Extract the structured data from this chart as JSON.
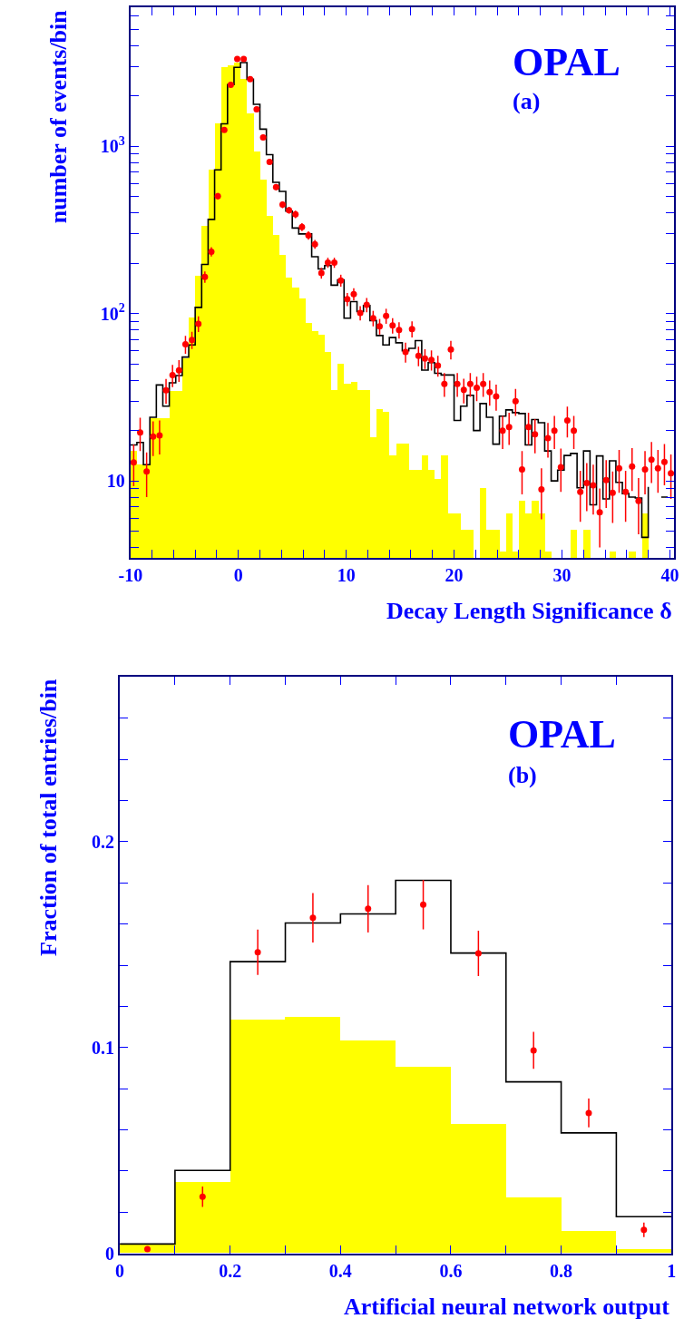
{
  "chart_data": [
    {
      "type": "histogram",
      "xlabel": "Decay Length Significance δ",
      "ylabel": "number of events/bin",
      "annotations": [
        "OPAL",
        "(a)"
      ],
      "log": true,
      "bins": [
        -10,
        -9.4,
        -8.8,
        -8.2,
        -7.6,
        -7,
        -6.4,
        -5.8,
        -5.2,
        -4.6,
        -4,
        -3.4,
        -2.8,
        -2.2,
        -1.6,
        -1,
        -0.4,
        0.2,
        0.8,
        1.4,
        2,
        2.6,
        3.2,
        3.8,
        4.4,
        5,
        5.6,
        6.2,
        6.8,
        7.4,
        8,
        8.6,
        9.2,
        9.8,
        10.4,
        11,
        11.6,
        12.2,
        12.8,
        13.4,
        14,
        14.6,
        15.2,
        15.8,
        16.4,
        17,
        17.6,
        18.2,
        18.8,
        19.4,
        20,
        20.6,
        21.2,
        21.8,
        22.4,
        23,
        23.6,
        24.2,
        24.8,
        25.4,
        26,
        26.6,
        27.2,
        27.8,
        28.4,
        29,
        29.6,
        30.2,
        30.8,
        31.4,
        32,
        32.6,
        33.2,
        33.8,
        34.4,
        35,
        35.6,
        36.2,
        36.8,
        37.4,
        38,
        38.6,
        39.2,
        39.8,
        40.4
      ],
      "xlim": [
        -10,
        40.4
      ],
      "ylim": [
        3.45,
        6800
      ],
      "xticks": [
        -10,
        {
          "value": -8,
          "label": null
        },
        {
          "value": -6,
          "label": null
        },
        {
          "value": -4,
          "label": null
        },
        {
          "value": -2,
          "label": null
        },
        0,
        {
          "value": 2,
          "label": null
        },
        {
          "value": 4,
          "label": null
        },
        {
          "value": 6,
          "label": null
        },
        {
          "value": 8,
          "label": null
        },
        10,
        {
          "value": 12,
          "label": null
        },
        {
          "value": 14,
          "label": null
        },
        {
          "value": 16,
          "label": null
        },
        {
          "value": 18,
          "label": null
        },
        20,
        {
          "value": 22,
          "label": null
        },
        {
          "value": 24,
          "label": null
        },
        {
          "value": 26,
          "label": null
        },
        {
          "value": 28,
          "label": null
        },
        30,
        {
          "value": 32,
          "label": null
        },
        {
          "value": 34,
          "label": null
        },
        {
          "value": 36,
          "label": null
        },
        {
          "value": 38,
          "label": null
        },
        40
      ],
      "yticks": [
        {
          "value": 4,
          "label": null
        },
        {
          "value": 5,
          "label": null
        },
        {
          "value": 6,
          "label": null
        },
        {
          "value": 7,
          "label": null
        },
        {
          "value": 8,
          "label": null
        },
        {
          "value": 9,
          "label": null
        },
        10,
        {
          "value": 20,
          "label": null
        },
        {
          "value": 30,
          "label": null
        },
        {
          "value": 40,
          "label": null
        },
        {
          "value": 50,
          "label": null
        },
        {
          "value": 60,
          "label": null
        },
        {
          "value": 70,
          "label": null
        },
        {
          "value": 80,
          "label": null
        },
        {
          "value": 90,
          "label": null
        },
        {
          "value": 100,
          "label": "10$^{2}$"
        },
        {
          "value": 200,
          "label": null
        },
        {
          "value": 300,
          "label": null
        },
        {
          "value": 400,
          "label": null
        },
        {
          "value": 500,
          "label": null
        },
        {
          "value": 600,
          "label": null
        },
        {
          "value": 700,
          "label": null
        },
        {
          "value": 800,
          "label": null
        },
        {
          "value": 900,
          "label": null
        },
        {
          "value": 1000,
          "label": "10$^{3}$"
        },
        {
          "value": 2000,
          "label": null
        },
        {
          "value": 3000,
          "label": null
        },
        {
          "value": 4000,
          "label": null
        },
        {
          "value": 5000,
          "label": null
        },
        {
          "value": 6000,
          "label": null
        }
      ],
      "series": [
        {
          "type": "histogram",
          "color": "#ffff00",
          "values": [
            15.2,
            12.5,
            12.5,
            23.8,
            23.8,
            23.8,
            34.5,
            34.5,
            54,
            95,
            168,
            336,
            724,
            1380,
            3000,
            3076,
            3170,
            2523,
            1585,
            929,
            631,
            385,
            297,
            226,
            164,
            143,
            124,
            88,
            79,
            75,
            59,
            35,
            50,
            38,
            39,
            35,
            35,
            18.3,
            27,
            26,
            14.3,
            16.7,
            16.7,
            11.7,
            11.7,
            14.3,
            11.7,
            10.3,
            14.3,
            6.4,
            6.4,
            5.1,
            5.1,
            null,
            9.1,
            5.1,
            5.1,
            3.8,
            6.4,
            3.8,
            7.6,
            6.4,
            7.6,
            6.4,
            3.8,
            null,
            null,
            null,
            5.1,
            null,
            5.1,
            null,
            null,
            null,
            3.8,
            null,
            null,
            3.8,
            null,
            6.4,
            null,
            null,
            null,
            null
          ]
        },
        {
          "type": "step",
          "color": "#000000",
          "x": [
            -10,
            -9.4,
            -8.8,
            -8.2,
            -7.6,
            -7,
            -6.4,
            -5.8,
            -5.2,
            -4.6,
            -4,
            -3.4,
            -2.8,
            -2.2,
            -1.6,
            -1,
            -0.4,
            0.2,
            0.8,
            1.4,
            2,
            2.6,
            3.2,
            3.8,
            4.4,
            5,
            5.6,
            6.2,
            6.8,
            7.4,
            8,
            8.6,
            9.2,
            9.8,
            10.4,
            11,
            11.6,
            12.2,
            12.8,
            13.4,
            14,
            14.6,
            15.2,
            15.8,
            16.4,
            17,
            17.6,
            18.2,
            18.8,
            19.4,
            20,
            20.6,
            21.2,
            21.8,
            22.4,
            23,
            23.6,
            24.2,
            24.8,
            25.4,
            26,
            26.6,
            27.2,
            27.8,
            28.4,
            29,
            29.6,
            30.2,
            30.8,
            31.4,
            32,
            32.6,
            33.2,
            33.8,
            34.4,
            35,
            35.6,
            36.2,
            36.8,
            37.4,
            38,
            38.6,
            39.2,
            39.8
          ],
          "values": [
            16.4,
            17,
            12.5,
            24,
            37.5,
            28,
            38.6,
            42.7,
            55,
            65,
            109,
            197,
            366,
            724,
            1365,
            2344,
            2972,
            3170,
            2523,
            1786,
            1268,
            893,
            610,
            538,
            410,
            325,
            300,
            300,
            219,
            185,
            194,
            148,
            159,
            94,
            118,
            103,
            112,
            91,
            74,
            65,
            72,
            67,
            60,
            62,
            69,
            46,
            51,
            44,
            43,
            43,
            23,
            28,
            32.5,
            20,
            29,
            24,
            16.6,
            24.4,
            26.6,
            25.6,
            25.3,
            16.4,
            23.3,
            22.3,
            15.1,
            10,
            11.6,
            14.2,
            14.6,
            9.1,
            15.1,
            7.2,
            14.1,
            7.8,
            13.2,
            9.8,
            8.4,
            8,
            7.9,
            4.6,
            9.2,
            null,
            8,
            8
          ]
        },
        {
          "type": "scatter",
          "color": "#ff0000",
          "marker": "circle",
          "x": [
            -9.7,
            -9.1,
            -8.5,
            -7.9,
            -7.3,
            -6.7,
            -6.1,
            -5.5,
            -4.9,
            -4.3,
            -3.7,
            -3.1,
            -2.5,
            -1.9,
            -1.3,
            -0.7,
            -0.1,
            0.5,
            1.1,
            1.7,
            2.3,
            2.9,
            3.5,
            4.1,
            4.7,
            5.3,
            5.9,
            6.5,
            7.1,
            7.7,
            8.3,
            8.9,
            9.5,
            10.1,
            10.7,
            11.3,
            11.9,
            12.5,
            13.1,
            13.7,
            14.3,
            14.9,
            15.5,
            16.1,
            16.7,
            17.3,
            17.9,
            18.5,
            19.1,
            19.7,
            20.3,
            20.9,
            21.5,
            22.1,
            22.7,
            23.3,
            23.9,
            24.5,
            25.1,
            25.7,
            26.3,
            26.9,
            27.5,
            28.1,
            28.7,
            29.3,
            29.9,
            30.5,
            31.1,
            31.7,
            32.3,
            32.9,
            33.5,
            34.1,
            34.7,
            35.3,
            35.9,
            36.5,
            37.1,
            37.7,
            38.3,
            38.9,
            39.5,
            40.1
          ],
          "values": [
            12.9,
            19.5,
            11.4,
            18.4,
            18.7,
            34.8,
            42.9,
            45.9,
            65.6,
            69.7,
            87,
            166,
            235,
            505,
            1256,
            2333,
            3334,
            3334,
            2523,
            1665,
            1132,
            808,
            571,
            449,
            416,
            393,
            330,
            294,
            260,
            175,
            202,
            202,
            158,
            122,
            131,
            101,
            113,
            94,
            84,
            97,
            85,
            80,
            59,
            81,
            56,
            54,
            53,
            49,
            38,
            61,
            38,
            35,
            38,
            36,
            38,
            34,
            32,
            20,
            21,
            30,
            11.7,
            21,
            19,
            8.9,
            18,
            20,
            12.1,
            23,
            20,
            8.6,
            9.7,
            9.4,
            6.5,
            10.1,
            8.5,
            11.9,
            8.6,
            12.2,
            7.6,
            11.7,
            13.4,
            11.9,
            13,
            11.1
          ],
          "errors": [
            3.6,
            4.4,
            3.4,
            4.3,
            4.3,
            5.9,
            6.5,
            6.8,
            8.1,
            8.3,
            9.3,
            13,
            15,
            22,
            35,
            48,
            58,
            58,
            50,
            41,
            34,
            28,
            24,
            21,
            20,
            20,
            18,
            17,
            16,
            13,
            14,
            14,
            13,
            11,
            11,
            10,
            11,
            10,
            9,
            10,
            9,
            9,
            8,
            9,
            7.5,
            7.3,
            7.3,
            7,
            6.2,
            7.8,
            6.2,
            5.9,
            6.2,
            6,
            6.2,
            5.8,
            5.7,
            4.5,
            4.6,
            5.5,
            3.4,
            4.6,
            4.4,
            3,
            4.2,
            4.5,
            3.5,
            4.8,
            4.5,
            2.9,
            3.1,
            3.1,
            2.5,
            3.2,
            2.9,
            3.4,
            2.9,
            3.5,
            2.8,
            3.4,
            3.7,
            3.4,
            3.6,
            3.3
          ]
        }
      ]
    },
    {
      "type": "histogram",
      "xlabel": "Artificial neural network output",
      "ylabel": "Fraction of total entries/bin",
      "annotations": [
        "OPAL",
        "(b)"
      ],
      "bins": [
        0,
        0.1,
        0.2,
        0.3,
        0.4,
        0.5,
        0.6,
        0.7,
        0.8,
        0.9,
        1
      ],
      "xlim": [
        0,
        1
      ],
      "ylim": [
        0,
        0.28
      ],
      "xticks": [
        0,
        {
          "value": 0.1,
          "label": null
        },
        0.2,
        {
          "value": 0.3,
          "label": null
        },
        0.4,
        {
          "value": 0.5,
          "label": null
        },
        0.6,
        {
          "value": 0.7,
          "label": null
        },
        0.8,
        {
          "value": 0.9,
          "label": null
        },
        1
      ],
      "yticks": [
        0,
        {
          "value": 0.02,
          "label": null
        },
        {
          "value": 0.04,
          "label": null
        },
        {
          "value": 0.06,
          "label": null
        },
        {
          "value": 0.08,
          "label": null
        },
        0.1,
        {
          "value": 0.12,
          "label": null
        },
        {
          "value": 0.14,
          "label": null
        },
        {
          "value": 0.16,
          "label": null
        },
        {
          "value": 0.18,
          "label": null
        },
        0.2,
        {
          "value": 0.22,
          "label": null
        },
        {
          "value": 0.24,
          "label": null
        },
        {
          "value": 0.26,
          "label": null
        }
      ],
      "series": [
        {
          "type": "histogram",
          "color": "#ffff00",
          "values": [
            0.004,
            0.0345,
            0.1136,
            0.1145,
            0.1033,
            0.0905,
            0.0626,
            0.0269,
            0.0109,
            0.0019
          ]
        },
        {
          "type": "step",
          "color": "#000000",
          "x": [
            0,
            0.1,
            0.2,
            0.3,
            0.4,
            0.5,
            0.6,
            0.7,
            0.8,
            0.9,
            1
          ],
          "values": [
            0.0045,
            0.0403,
            0.1417,
            0.1605,
            0.1649,
            0.1812,
            0.1459,
            0.0833,
            0.0585,
            0.0178,
            0.0178
          ]
        },
        {
          "type": "scatter",
          "color": "#ff0000",
          "marker": "circle",
          "x": [
            0.05,
            0.15,
            0.25,
            0.35,
            0.45,
            0.55,
            0.65,
            0.75,
            0.85,
            0.95
          ],
          "values": [
            0.002,
            0.0275,
            0.1463,
            0.163,
            0.1674,
            0.1694,
            0.1457,
            0.0986,
            0.0682,
            0.0114
          ],
          "errors": [
            0.0005,
            0.005,
            0.011,
            0.012,
            0.0115,
            0.012,
            0.011,
            0.009,
            0.007,
            0.0035
          ]
        }
      ]
    }
  ]
}
